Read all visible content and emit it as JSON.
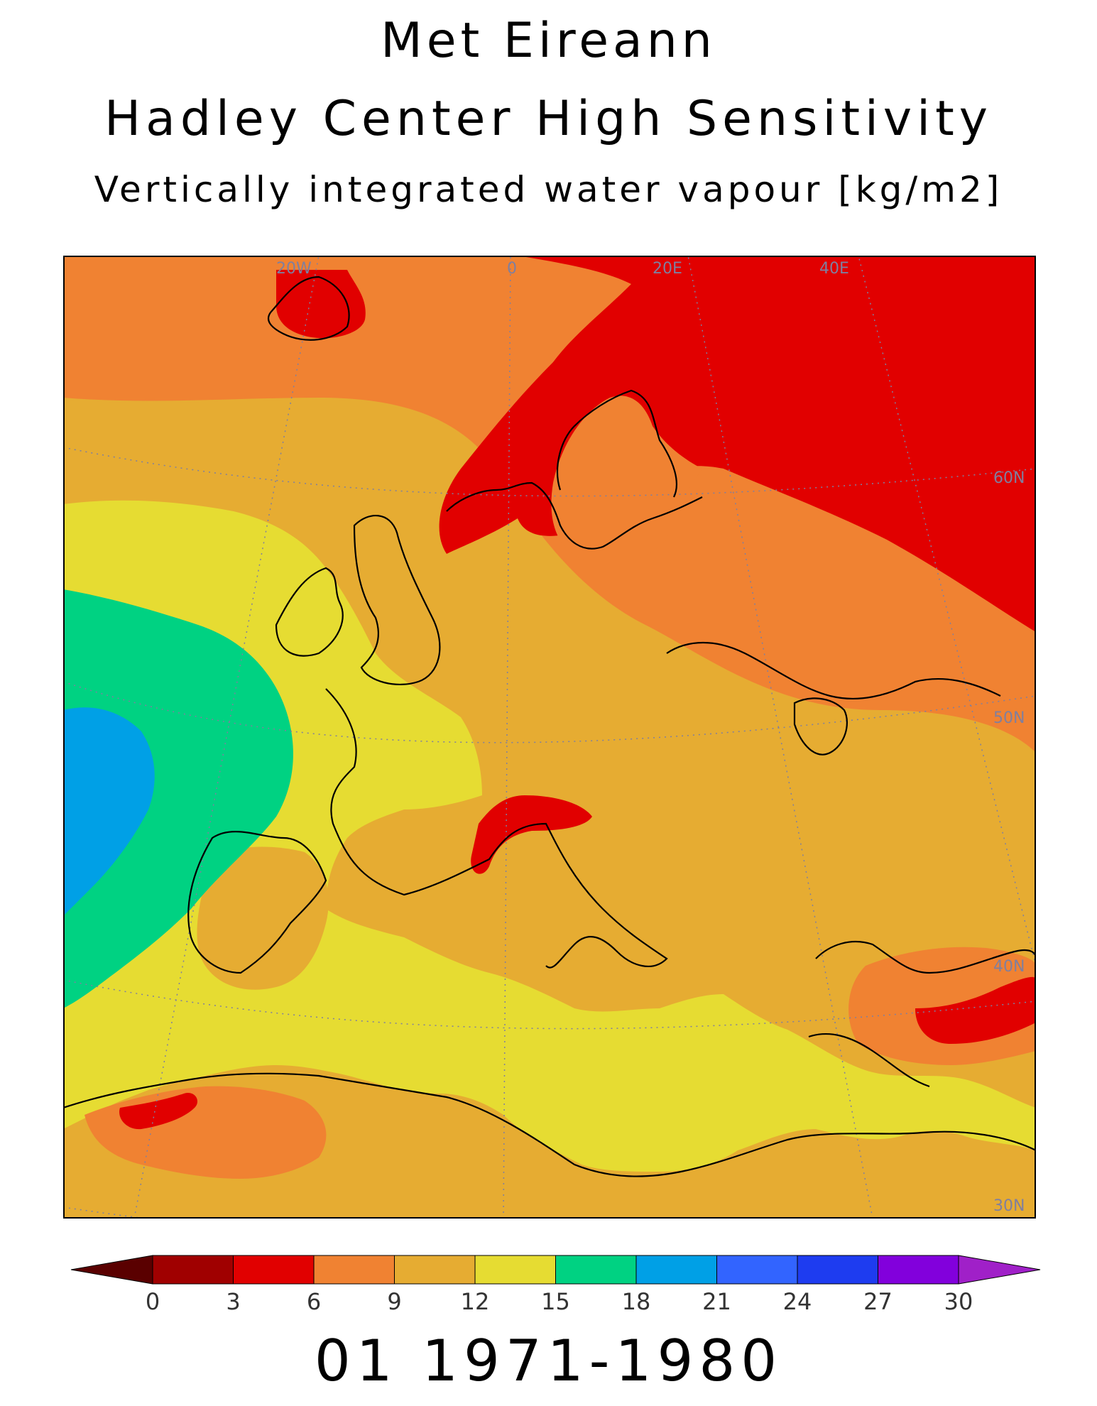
{
  "titles": {
    "line1": "Met Eireann",
    "line2": "Hadley Center High Sensitivity",
    "line3": "Vertically integrated water vapour [kg/m2]"
  },
  "period_label": "01 1971-1980",
  "map": {
    "region": "Europe",
    "longitude_labels": [
      "20W",
      "0",
      "20E",
      "40E"
    ],
    "latitude_labels": [
      "60N",
      "50N",
      "40N",
      "30N"
    ],
    "coastline_color": "#000000",
    "graticule_color": "#7f7f9f"
  },
  "colorbar": {
    "tick_labels": [
      "0",
      "3",
      "6",
      "9",
      "12",
      "15",
      "18",
      "21",
      "24",
      "27",
      "30"
    ],
    "under_color": "#5a0000",
    "over_color": "#a020c8",
    "bin_colors": [
      "#a00000",
      "#e10000",
      "#f08232",
      "#e6ac32",
      "#e6dc32",
      "#00d282",
      "#00a0e6",
      "#3264ff",
      "#1e3cf0",
      "#8200dc"
    ]
  },
  "field_colors": {
    "c3_6": "#e10000",
    "c6_9": "#f08232",
    "c9_12": "#e6ac32",
    "c12_15": "#e6dc32",
    "c15_18": "#00d282",
    "c18_21": "#00a0e6"
  }
}
